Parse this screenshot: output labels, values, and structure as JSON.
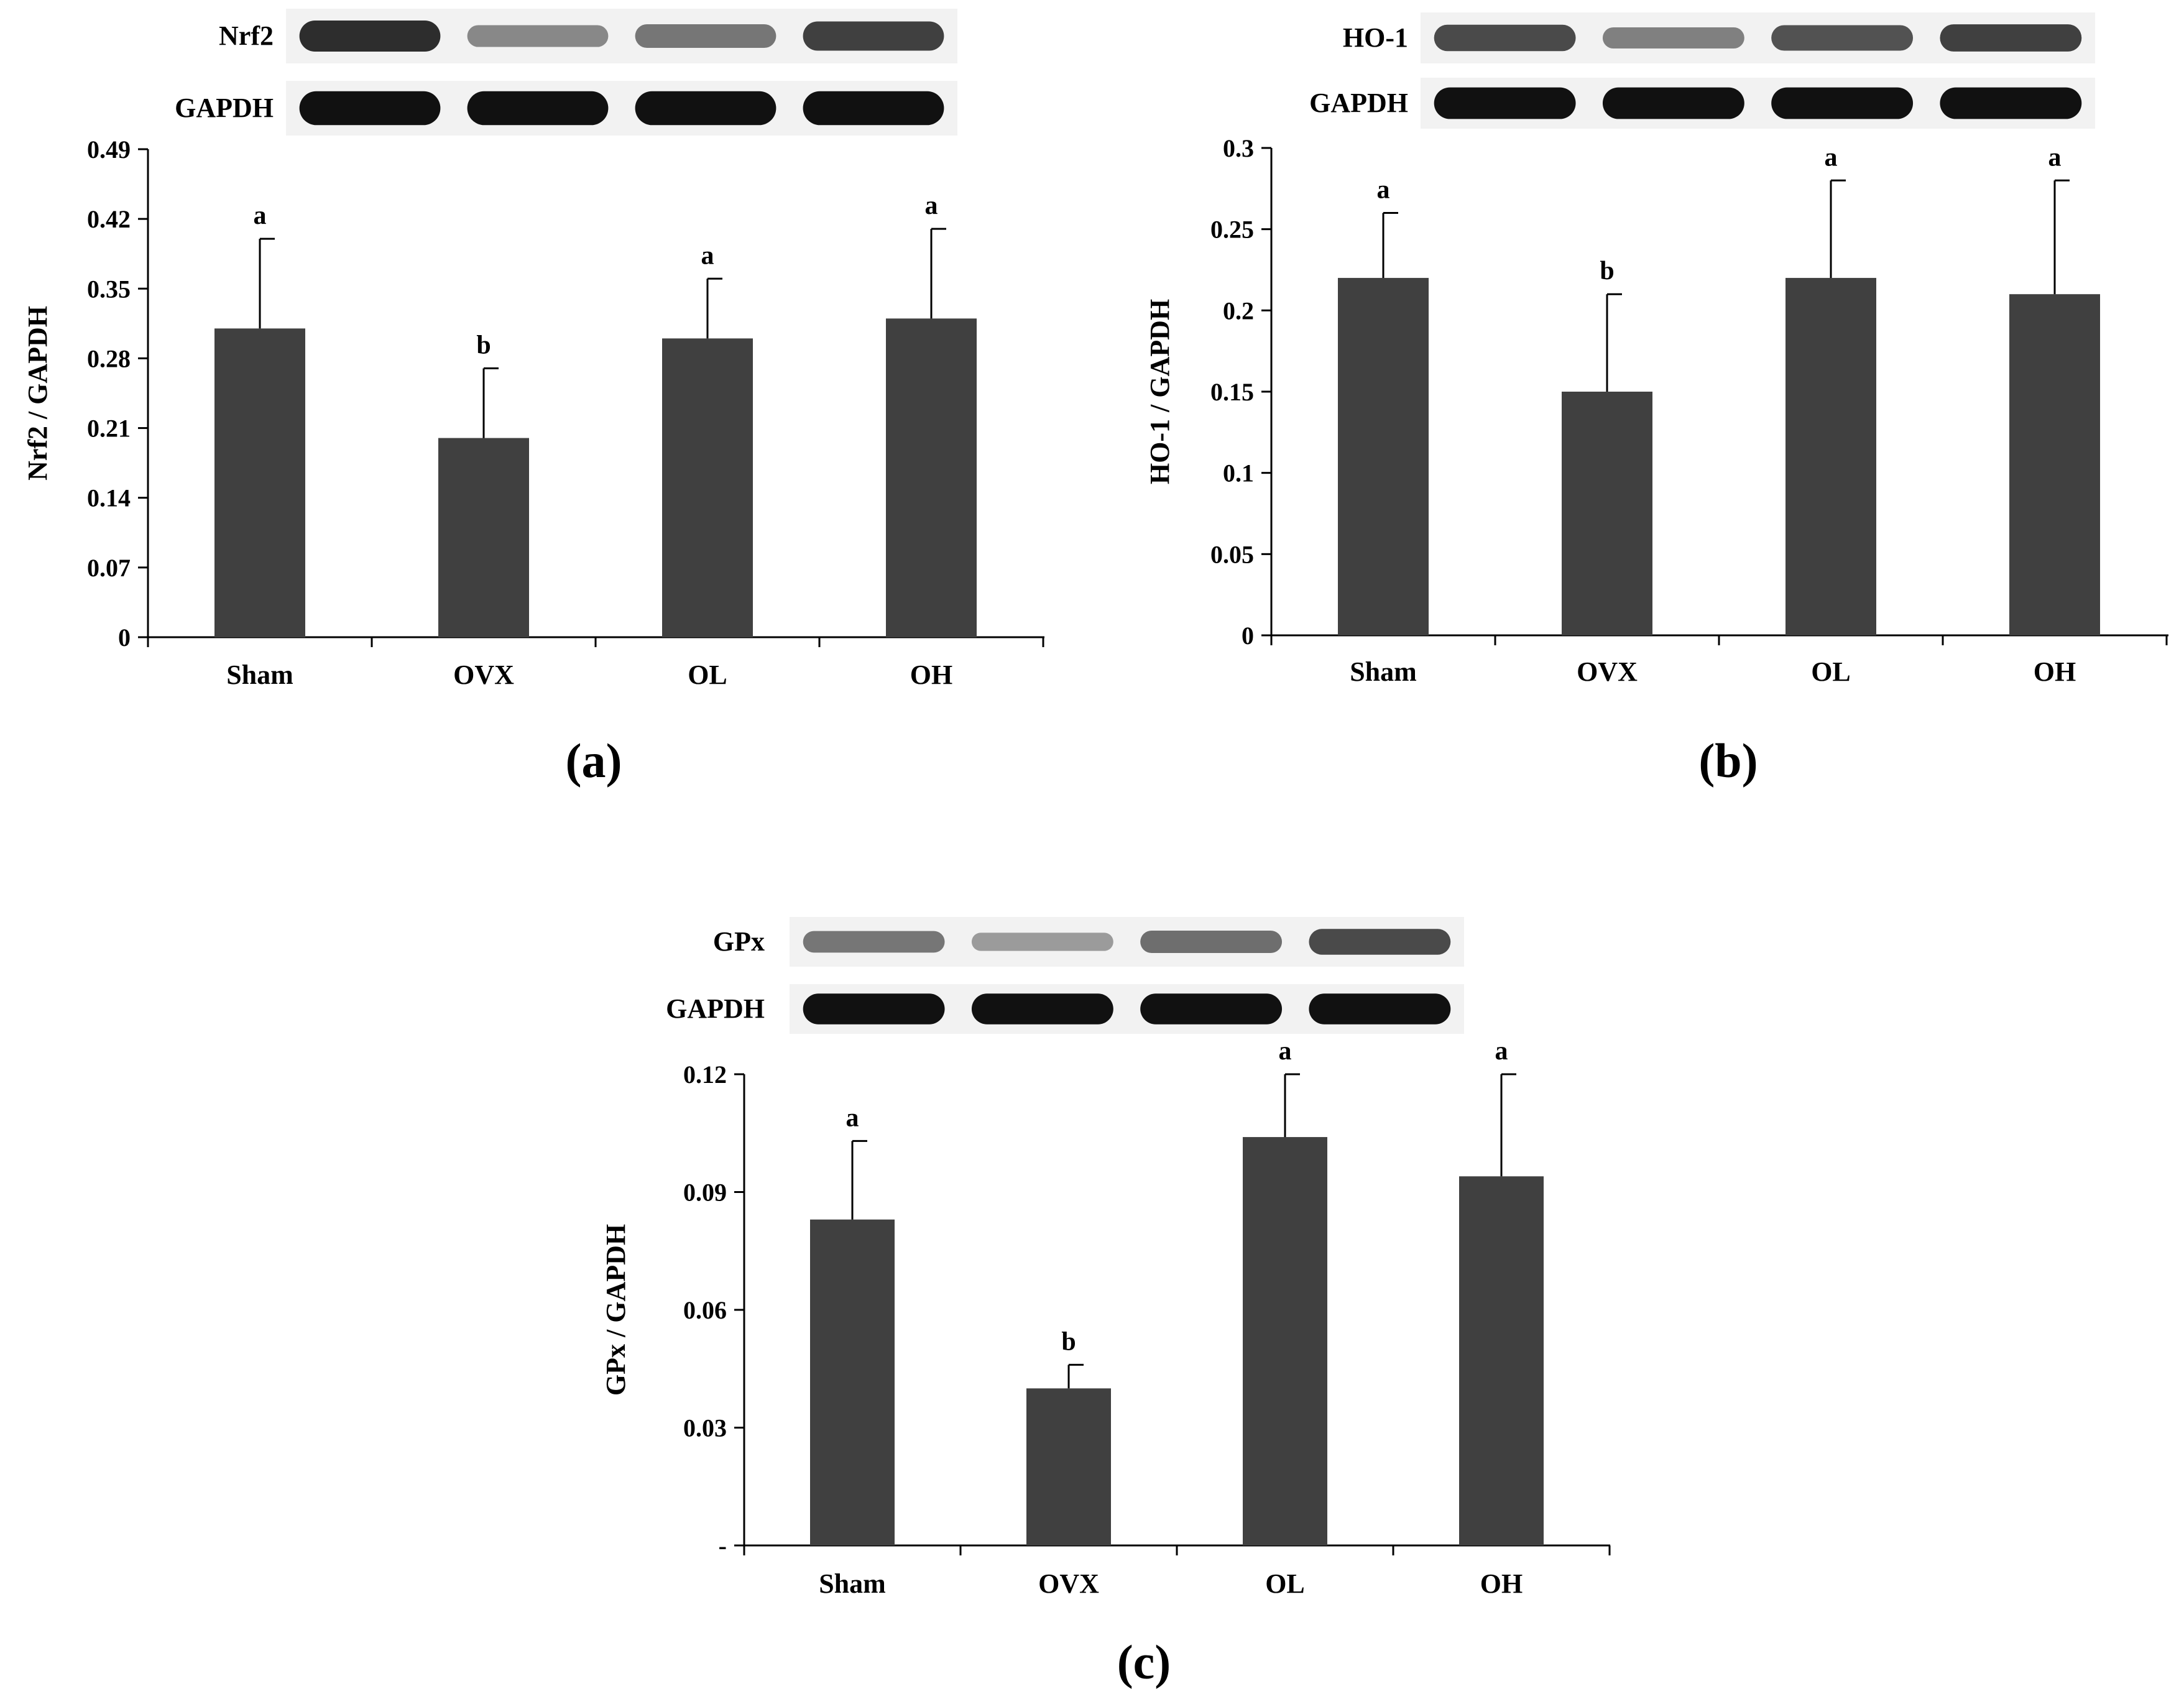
{
  "colors": {
    "bar": "#404040",
    "axis": "#000000",
    "blot_bg": "#f2f2f2",
    "band": "#111111"
  },
  "chart_data": [
    {
      "panel_label": "(a)",
      "type": "bar",
      "categories": [
        "Sham",
        "OVX",
        "OL",
        "OH"
      ],
      "values": [
        0.31,
        0.2,
        0.3,
        0.32
      ],
      "errors": [
        0.09,
        0.07,
        0.06,
        0.09
      ],
      "significance": [
        "a",
        "b",
        "a",
        "a"
      ],
      "ylabel": "Nrf2 / GAPDH",
      "ylim": [
        0,
        0.49
      ],
      "yticks": [
        0,
        0.07,
        0.14,
        0.21,
        0.28,
        0.35,
        0.42,
        0.49
      ],
      "ytick_labels": [
        "0",
        "0.07",
        "0.14",
        "0.21",
        "0.28",
        "0.35",
        "0.42",
        "0.49"
      ],
      "blots": [
        {
          "label": "Nrf2",
          "intensity": [
            0.85,
            0.35,
            0.45,
            0.75
          ]
        },
        {
          "label": "GAPDH",
          "intensity": [
            1,
            1,
            1,
            1
          ]
        }
      ]
    },
    {
      "panel_label": "(b)",
      "type": "bar",
      "categories": [
        "Sham",
        "OVX",
        "OL",
        "OH"
      ],
      "values": [
        0.22,
        0.15,
        0.22,
        0.21
      ],
      "errors": [
        0.04,
        0.06,
        0.06,
        0.07
      ],
      "significance": [
        "a",
        "b",
        "a",
        "a"
      ],
      "ylabel": "HO-1 / GAPDH",
      "ylim": [
        0,
        0.3
      ],
      "yticks": [
        0,
        0.05,
        0.1,
        0.15,
        0.2,
        0.25,
        0.3
      ],
      "ytick_labels": [
        "0",
        "0.05",
        "0.1",
        "0.15",
        "0.2",
        "0.25",
        "0.3"
      ],
      "blots": [
        {
          "label": "HO-1",
          "intensity": [
            0.7,
            0.4,
            0.65,
            0.75
          ]
        },
        {
          "label": "GAPDH",
          "intensity": [
            1,
            1,
            1,
            1
          ]
        }
      ]
    },
    {
      "panel_label": "(c)",
      "type": "bar",
      "categories": [
        "Sham",
        "OVX",
        "OL",
        "OH"
      ],
      "values": [
        0.083,
        0.04,
        0.104,
        0.094
      ],
      "errors": [
        0.02,
        0.006,
        0.016,
        0.026
      ],
      "significance": [
        "a",
        "b",
        "a",
        "a"
      ],
      "ylabel": "GPx / GAPDH",
      "ylim": [
        0,
        0.12
      ],
      "yticks": [
        0,
        0.03,
        0.06,
        0.09,
        0.12
      ],
      "ytick_labels": [
        "-",
        "0.03",
        "0.06",
        "0.09",
        "0.12"
      ],
      "blots": [
        {
          "label": "GPx",
          "intensity": [
            0.45,
            0.25,
            0.5,
            0.7
          ]
        },
        {
          "label": "GAPDH",
          "intensity": [
            1,
            1,
            1,
            1
          ]
        }
      ]
    }
  ]
}
